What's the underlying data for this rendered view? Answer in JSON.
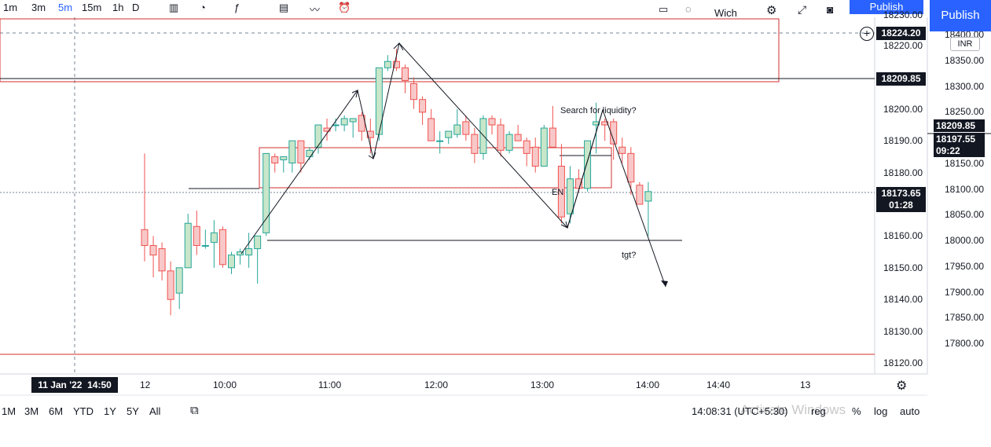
{
  "toolbar": {
    "items": [
      "1m",
      "3m",
      "5m",
      "15m",
      "1h",
      "D"
    ],
    "publish_label": "Publish",
    "publish_label_behind": "Publish",
    "withdraw_label": "Wich"
  },
  "currency": "INR",
  "inner_price_axis": [
    "18230.00",
    "18220.00",
    "18200.00",
    "18190.00",
    "18180.00",
    "18160.00",
    "18150.00",
    "18140.00",
    "18130.00",
    "18120.00"
  ],
  "outer_price_axis": [
    "18400.00",
    "18350.00",
    "18300.00",
    "18250.00",
    "18150.00",
    "18100.00",
    "18050.00",
    "18000.00",
    "17950.00",
    "17900.00",
    "17850.00",
    "17800.00"
  ],
  "price_tags": {
    "crosshair": "18224.20",
    "resistance": "18209.85",
    "current": "18173.65",
    "countdown": "01:28",
    "outer_resistance": "18209.85",
    "outer_current": "18197.55",
    "outer_countdown": "09:22"
  },
  "time_axis": [
    "12",
    "10:00",
    "11:00",
    "12:00",
    "13:00",
    "14:00",
    "14:40",
    "13"
  ],
  "crosshair_date": "11 Jan '22",
  "crosshair_time": "14:50",
  "annotations": {
    "search_liquidity": "Search for liquidity?",
    "entry": "EN",
    "target": "tgt?"
  },
  "bottom_bar": {
    "ranges": [
      "1M",
      "3M",
      "6M",
      "YTD",
      "1Y",
      "5Y",
      "All"
    ],
    "clock": "14:08:31 (UTC+5:30)",
    "reg": "reg",
    "percent": "%",
    "log": "log",
    "auto": "auto",
    "watermark": "Activate Windows"
  },
  "colors": {
    "bull": "#26a69a",
    "bull_fill": "#c8e6c9",
    "bear": "#ef5350",
    "bear_fill": "#f8c8c8",
    "accent": "#2962ff",
    "zone": "#d32f2f"
  },
  "chart_data": {
    "type": "candlestick",
    "interval": "5m",
    "candles": [
      {
        "o": 18162,
        "h": 18186,
        "l": 18152,
        "c": 18157
      },
      {
        "o": 18157,
        "h": 18160,
        "l": 18147,
        "c": 18154
      },
      {
        "o": 18156,
        "h": 18158,
        "l": 18146,
        "c": 18149
      },
      {
        "o": 18149,
        "h": 18152,
        "l": 18135,
        "c": 18140
      },
      {
        "o": 18142,
        "h": 18150,
        "l": 18137,
        "c": 18150
      },
      {
        "o": 18150,
        "h": 18167,
        "l": 18150,
        "c": 18164
      },
      {
        "o": 18163,
        "h": 18168,
        "l": 18154,
        "c": 18157
      },
      {
        "o": 18157,
        "h": 18162,
        "l": 18156,
        "c": 18157
      },
      {
        "o": 18158,
        "h": 18165,
        "l": 18150,
        "c": 18161
      },
      {
        "o": 18162,
        "h": 18163,
        "l": 18150,
        "c": 18151
      },
      {
        "o": 18150,
        "h": 18155,
        "l": 18148,
        "c": 18154
      },
      {
        "o": 18154,
        "h": 18156,
        "l": 18151,
        "c": 18155
      },
      {
        "o": 18154,
        "h": 18161,
        "l": 18150,
        "c": 18156
      },
      {
        "o": 18156,
        "h": 18160,
        "l": 18145,
        "c": 18160
      },
      {
        "o": 18161,
        "h": 18186,
        "l": 18160,
        "c": 18186
      },
      {
        "o": 18185,
        "h": 18186,
        "l": 18180,
        "c": 18183
      },
      {
        "o": 18184,
        "h": 18185,
        "l": 18180,
        "c": 18185
      },
      {
        "o": 18183,
        "h": 18190,
        "l": 18180,
        "c": 18190
      },
      {
        "o": 18190,
        "h": 18190,
        "l": 18180,
        "c": 18183
      },
      {
        "o": 18185,
        "h": 18188,
        "l": 18184,
        "c": 18187
      },
      {
        "o": 18188,
        "h": 18195,
        "l": 18186,
        "c": 18195
      },
      {
        "o": 18194,
        "h": 18197,
        "l": 18190,
        "c": 18193
      },
      {
        "o": 18195,
        "h": 18197,
        "l": 18193,
        "c": 18195
      },
      {
        "o": 18195,
        "h": 18198,
        "l": 18193,
        "c": 18197
      },
      {
        "o": 18196,
        "h": 18197,
        "l": 18191,
        "c": 18197
      },
      {
        "o": 18198,
        "h": 18199,
        "l": 18190,
        "c": 18193
      },
      {
        "o": 18193,
        "h": 18197,
        "l": 18186,
        "c": 18191
      },
      {
        "o": 18192,
        "h": 18213,
        "l": 18190,
        "c": 18213
      },
      {
        "o": 18213,
        "h": 18217,
        "l": 18212,
        "c": 18215
      },
      {
        "o": 18215,
        "h": 18219,
        "l": 18212,
        "c": 18213
      },
      {
        "o": 18213,
        "h": 18214,
        "l": 18205,
        "c": 18209
      },
      {
        "o": 18208,
        "h": 18210,
        "l": 18200,
        "c": 18203
      },
      {
        "o": 18203,
        "h": 18204,
        "l": 18195,
        "c": 18199
      },
      {
        "o": 18197,
        "h": 18200,
        "l": 18190,
        "c": 18190
      },
      {
        "o": 18190,
        "h": 18193,
        "l": 18186,
        "c": 18190
      },
      {
        "o": 18191,
        "h": 18193,
        "l": 18189,
        "c": 18193
      },
      {
        "o": 18192,
        "h": 18200,
        "l": 18191,
        "c": 18195
      },
      {
        "o": 18196,
        "h": 18198,
        "l": 18190,
        "c": 18192
      },
      {
        "o": 18192,
        "h": 18194,
        "l": 18183,
        "c": 18186
      },
      {
        "o": 18186,
        "h": 18198,
        "l": 18184,
        "c": 18197
      },
      {
        "o": 18197,
        "h": 18198,
        "l": 18192,
        "c": 18195
      },
      {
        "o": 18195,
        "h": 18197,
        "l": 18185,
        "c": 18187
      },
      {
        "o": 18187,
        "h": 18193,
        "l": 18186,
        "c": 18192
      },
      {
        "o": 18192,
        "h": 18195,
        "l": 18190,
        "c": 18190
      },
      {
        "o": 18190,
        "h": 18191,
        "l": 18182,
        "c": 18186
      },
      {
        "o": 18188,
        "h": 18191,
        "l": 18180,
        "c": 18182
      },
      {
        "o": 18182,
        "h": 18195,
        "l": 18182,
        "c": 18194
      },
      {
        "o": 18194,
        "h": 18201,
        "l": 18188,
        "c": 18188
      },
      {
        "o": 18182,
        "h": 18189,
        "l": 18164,
        "c": 18166
      },
      {
        "o": 18167,
        "h": 18182,
        "l": 18164,
        "c": 18178
      },
      {
        "o": 18178,
        "h": 18181,
        "l": 18174,
        "c": 18175
      },
      {
        "o": 18175,
        "h": 18190,
        "l": 18174,
        "c": 18190
      },
      {
        "o": 18195,
        "h": 18202,
        "l": 18186,
        "c": 18196
      },
      {
        "o": 18196,
        "h": 18197,
        "l": 18190,
        "c": 18195
      },
      {
        "o": 18196,
        "h": 18197,
        "l": 18184,
        "c": 18189
      },
      {
        "o": 18188,
        "h": 18191,
        "l": 18183,
        "c": 18186
      },
      {
        "o": 18186,
        "h": 18188,
        "l": 18173,
        "c": 18177
      },
      {
        "o": 18176,
        "h": 18177,
        "l": 18170,
        "c": 18170
      },
      {
        "o": 18171,
        "h": 18177,
        "l": 18160,
        "c": 18174
      }
    ],
    "levels": [
      18224.2,
      18209.85,
      18173.65,
      18160.0
    ],
    "zones": [
      {
        "from_price": 18230,
        "to_price": 18210
      },
      {
        "from_price": 18188,
        "to_price": 18176
      }
    ],
    "ylim": [
      18118,
      18232
    ]
  }
}
